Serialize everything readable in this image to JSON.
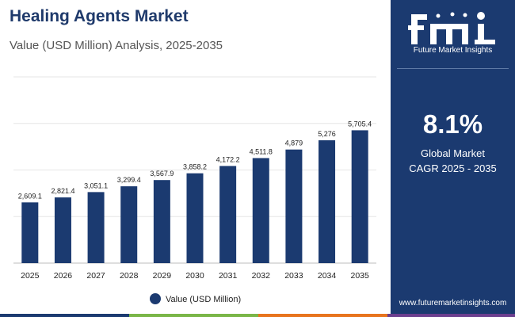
{
  "header": {
    "title": "Healing Agents Market",
    "subtitle": "Value (USD Million) Analysis, 2025-2035"
  },
  "sidebar": {
    "logo_text": "Future Market Insights",
    "cagr_value": "8.1%",
    "cagr_label_line1": "Global Market",
    "cagr_label_line2": "CAGR 2025 - 2035",
    "url": "www.futuremarketinsights.com"
  },
  "colors": {
    "bar": "#1b3a70",
    "title": "#1f3a6b",
    "sidebar": "#1b3a70",
    "strip": [
      "#1b3a70",
      "#7ab648",
      "#e8741e",
      "#6c3f8f"
    ]
  },
  "chart_data": {
    "type": "bar",
    "categories": [
      "2025",
      "2026",
      "2027",
      "2028",
      "2029",
      "2030",
      "2031",
      "2032",
      "2033",
      "2034",
      "2035"
    ],
    "series": [
      {
        "name": "Value (USD Million)",
        "values": [
          2609.1,
          2821.4,
          3051.1,
          3299.4,
          3567.9,
          3858.2,
          4172.2,
          4511.8,
          4879,
          5276,
          5705.4
        ],
        "labels": [
          "2,609.1",
          "2,821.4",
          "3,051.1",
          "3,299.4",
          "3,567.9",
          "3,858.2",
          "4,172.2",
          "4,511.8",
          "4,879",
          "5,276",
          "5,705.4"
        ]
      }
    ],
    "ylim": [
      0,
      8000
    ],
    "grid": true,
    "legend": "bottom-center"
  }
}
